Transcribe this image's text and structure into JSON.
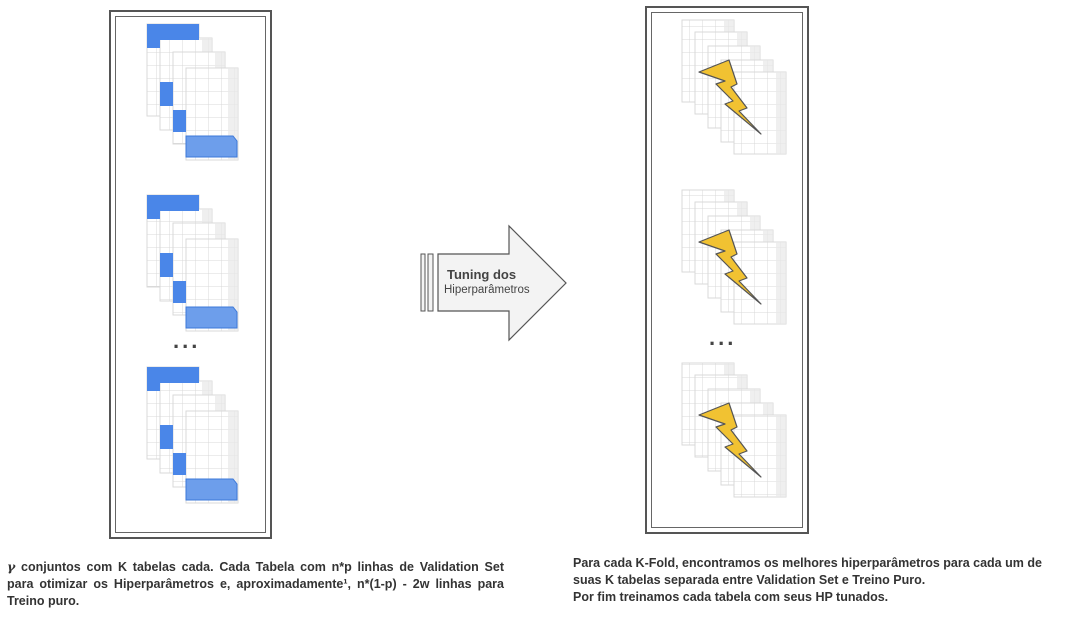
{
  "left_caption": {
    "gamma": "γ",
    "text": " conjuntos com K tabelas cada. Cada Tabela com n*p linhas de Validation Set para otimizar os Hiperparâmetros e, aproximadamente¹, n*(1-p) - 2w linhas para Treino puro."
  },
  "right_caption": {
    "line1": "Para cada K-Fold, encontramos os melhores hiperparâmetros para cada um de suas K tabelas separada entre Validation Set e Treino Puro.",
    "line2": "Por fim treinamos cada tabela com seus HP tunados."
  },
  "arrow": {
    "line1": "Tuning dos",
    "line2": "Hiperparâmetros"
  },
  "ellipsis": "...",
  "colors": {
    "validation_blue": "#4a86e8",
    "train_blue": "#6d9eeb",
    "bolt_yellow": "#f1c232",
    "grid_line": "#d9d9d9",
    "header_gray": "#e8e8e8"
  }
}
